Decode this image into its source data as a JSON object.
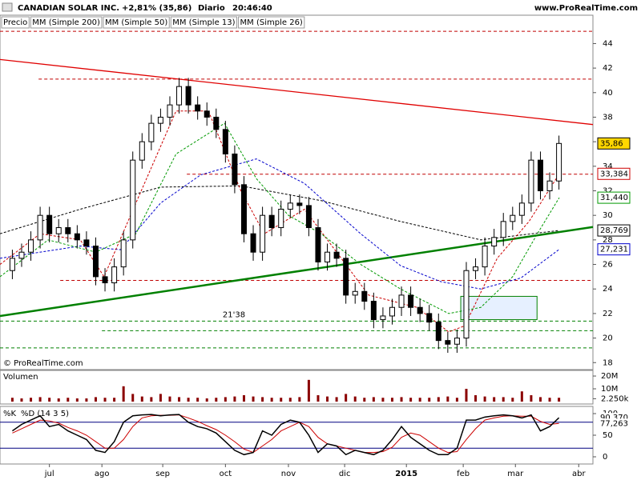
{
  "chart_data": {
    "type": "candlestick",
    "title": "CANADIAN SOLAR INC.",
    "change": "+2,81% (35,86)",
    "period": "Diario",
    "time": "20:46:40",
    "source": "www.ProRealTime.com",
    "watermark": "© ProRealTime.com",
    "price_label": "Precio",
    "x": [
      4,
      7,
      10,
      13,
      16,
      19,
      22,
      25,
      28,
      31,
      34,
      37,
      40,
      43,
      46,
      49,
      52,
      55,
      58,
      61,
      64,
      67,
      70,
      73,
      76,
      79,
      82,
      85,
      88,
      91,
      94,
      97,
      100,
      103,
      106,
      109,
      112,
      115,
      118,
      121,
      124,
      127,
      130,
      133,
      136,
      139,
      142,
      145,
      148,
      151,
      154,
      157,
      160,
      163,
      166,
      169,
      172,
      175,
      178,
      181
    ],
    "open": [
      25.5,
      26.5,
      27,
      28,
      30,
      28.5,
      29,
      28.5,
      28,
      27.5,
      25,
      24.5,
      25.8,
      28,
      34.5,
      36,
      37.5,
      38,
      39,
      40.5,
      39,
      38.5,
      38,
      37,
      35,
      32.5,
      28.5,
      27,
      30,
      29,
      30.5,
      31,
      30.8,
      29,
      26.2,
      27,
      26.5,
      23.5,
      23.8,
      23,
      21.5,
      21.8,
      22.5,
      23.5,
      22.5,
      22,
      21.3,
      19.8,
      19.5,
      20,
      25.5,
      25.8,
      27.5,
      28.2,
      29.5,
      30,
      31,
      34.5,
      32,
      32.8
    ],
    "high": [
      27.2,
      27.7,
      28.7,
      30.7,
      30.7,
      29.7,
      29.7,
      29.2,
      28.7,
      28.2,
      25.7,
      26.5,
      28.7,
      35.2,
      36.7,
      38.2,
      38.7,
      39.7,
      41.2,
      41.2,
      39.7,
      39.2,
      38.7,
      37.7,
      35.7,
      33.2,
      29.2,
      30.7,
      30.7,
      31.2,
      31.7,
      31.7,
      31.5,
      29.7,
      27.7,
      27.7,
      27.2,
      24.5,
      24.5,
      23.7,
      22.5,
      23.2,
      24.2,
      24.2,
      23.2,
      22.7,
      22,
      20.5,
      20.7,
      26.2,
      26.5,
      28.2,
      28.9,
      30.2,
      30.7,
      31.7,
      35.2,
      35.2,
      33.5,
      36.5
    ],
    "low": [
      24.8,
      25.8,
      26.3,
      27.3,
      27.8,
      27.8,
      27.8,
      27.3,
      26.8,
      24.3,
      23.8,
      23.8,
      25.1,
      27.3,
      33.8,
      35.3,
      36.8,
      37.3,
      38.3,
      38.3,
      37.8,
      37.3,
      36.3,
      34.3,
      31.8,
      27.8,
      26.3,
      26.3,
      28.3,
      28.3,
      29.8,
      30.1,
      28.3,
      25.5,
      25.5,
      25.8,
      22.8,
      22.8,
      22.3,
      20.8,
      20.8,
      21.1,
      21.8,
      21.8,
      21.3,
      20.6,
      19.1,
      18.8,
      18.8,
      19.3,
      24.8,
      25.1,
      26.8,
      27.5,
      28.8,
      29.3,
      30.3,
      31.3,
      31.3,
      32.1
    ],
    "close": [
      26.5,
      27,
      28,
      30,
      28.5,
      29,
      28.5,
      28,
      27.5,
      25,
      24.5,
      25.8,
      28,
      34.5,
      36,
      37.5,
      38,
      39,
      40.5,
      39,
      38.5,
      38,
      37,
      35,
      32.5,
      28.5,
      27,
      30,
      29,
      30.5,
      31,
      30.8,
      29,
      26.2,
      27,
      26.5,
      23.5,
      23.8,
      23,
      21.5,
      21.8,
      22.5,
      23.5,
      22.5,
      22,
      21.3,
      19.8,
      19.5,
      20,
      25.5,
      25.8,
      27.5,
      28.2,
      29.5,
      30,
      31,
      34.5,
      32,
      32.8,
      35.86
    ],
    "last": {
      "value": 35.86,
      "label": "35,86"
    },
    "xlim": [
      0,
      192
    ],
    "xticks": [
      {
        "value": 16,
        "label": "jul"
      },
      {
        "value": 33,
        "label": "ago"
      },
      {
        "value": 52.7,
        "label": "sep"
      },
      {
        "value": 73,
        "label": "oct"
      },
      {
        "value": 93.4,
        "label": "nov"
      },
      {
        "value": 111.6,
        "label": "dic"
      },
      {
        "value": 131.6,
        "label": "2015"
      },
      {
        "value": 150,
        "label": "feb"
      },
      {
        "value": 166.9,
        "label": "mar"
      },
      {
        "value": 187.4,
        "label": "abr"
      }
    ],
    "ylim": [
      17.43,
      46.31
    ],
    "yticks": [
      18,
      20,
      22,
      24,
      26,
      28,
      30,
      32,
      34,
      36,
      38,
      40,
      42,
      44
    ],
    "overlays": [
      {
        "name": "MM (Simple 200)",
        "color": "#000000",
        "x": [
          0,
          26,
          52,
          78,
          104,
          129.7,
          155.7,
          181.1
        ],
        "values": [
          28.5,
          30.5,
          32.3,
          32.4,
          31.2,
          29.5,
          28.0,
          28.769
        ],
        "last": {
          "value": 28.769,
          "label": "28,769"
        }
      },
      {
        "name": "MM (Simple 50)",
        "color": "#0000cc",
        "x": [
          0,
          26,
          39,
          52,
          65,
          83,
          98.6,
          116.8,
          129.7,
          142.7,
          155.7,
          168.7,
          181.1
        ],
        "values": [
          26.5,
          27.5,
          27.2,
          31,
          33.3,
          34.6,
          32.6,
          28.5,
          25.9,
          24.6,
          24,
          24.9,
          27.231
        ],
        "last": {
          "value": 27.231,
          "label": "27,231"
        }
      },
      {
        "name": "MM (Simple 13)",
        "color": "#cc0000",
        "x": [
          0,
          13,
          26,
          33.7,
          44,
          57,
          67.5,
          78,
          85.6,
          98.6,
          109,
          119.4,
          135,
          145.3,
          150.5,
          161,
          171.3,
          181.1
        ],
        "values": [
          26,
          28.5,
          28,
          25,
          31,
          38.5,
          38.5,
          32,
          28.5,
          30.5,
          27,
          23.5,
          22.5,
          20.5,
          21,
          26.5,
          29.5,
          33.384
        ],
        "last": {
          "value": 33.384,
          "label": "33,384"
        }
      },
      {
        "name": "MM (Simple 26)",
        "color": "#009900",
        "x": [
          0,
          15.6,
          31,
          44,
          57,
          72.7,
          83,
          93.4,
          104,
          116.8,
          129.7,
          145.3,
          155.7,
          166,
          174,
          181.1
        ],
        "values": [
          25,
          28,
          27,
          28.5,
          35,
          37.5,
          33,
          30,
          28.5,
          26,
          24,
          22,
          22.5,
          25,
          28.5,
          31.44
        ],
        "last": {
          "value": 31.44,
          "label": "31,440"
        }
      }
    ],
    "trendlines": [
      {
        "color": "#e00000",
        "x": [
          0,
          192
        ],
        "values": [
          42.7,
          37.4
        ]
      },
      {
        "color": "#008000",
        "x": [
          0,
          192
        ],
        "values": [
          21.8,
          29.05
        ]
      }
    ],
    "hlines": [
      {
        "value": 45.0,
        "x0": 0,
        "color": "#c00000"
      },
      {
        "value": 41.1,
        "x0": 12.5,
        "color": "#c00000"
      },
      {
        "value": 33.35,
        "x0": 60.5,
        "color": "#c00000"
      },
      {
        "value": 24.7,
        "x0": 19.5,
        "color": "#c00000"
      },
      {
        "value": 21.38,
        "x0": 0,
        "color": "#008000",
        "label": "21'38"
      },
      {
        "value": 20.6,
        "x0": 33,
        "color": "#008000"
      },
      {
        "value": 19.2,
        "x0": 0,
        "color": "#008000"
      }
    ],
    "box": {
      "x": [
        149.2,
        173.9
      ],
      "y": [
        21.5,
        23.4
      ]
    },
    "volume": {
      "label": "Volumen",
      "color": "#8b0000",
      "values": [
        3,
        2.5,
        3,
        3.5,
        3,
        2.5,
        3,
        2.5,
        2.5,
        3.5,
        3,
        3,
        12,
        6,
        4,
        3.5,
        6,
        4,
        3.5,
        3,
        3,
        2.5,
        3,
        3.5,
        4,
        5,
        4,
        3.5,
        3,
        3,
        3,
        3.5,
        17,
        5,
        4,
        3.5,
        6,
        4,
        3,
        3.5,
        3,
        3,
        3.5,
        3,
        3,
        3,
        3.5,
        4,
        3,
        10,
        5,
        4,
        3.5,
        3.5,
        3,
        8,
        5,
        3.5,
        3,
        3
      ],
      "ylim": [
        0,
        24.4
      ],
      "yticks": [
        {
          "value": 20,
          "label": "20M"
        },
        {
          "value": 10,
          "label": "10M"
        },
        {
          "value": 2.25,
          "label": "2.250k"
        }
      ]
    },
    "stochastic": {
      "k_name": "%K",
      "d_name": "%D (14 3 5)",
      "k_color": "#000000",
      "d_color": "#cc0000",
      "k": [
        60,
        75,
        85,
        95,
        70,
        75,
        60,
        50,
        40,
        15,
        10,
        35,
        80,
        95,
        97,
        98,
        95,
        97,
        98,
        80,
        70,
        65,
        55,
        35,
        15,
        5,
        10,
        60,
        50,
        75,
        85,
        80,
        50,
        10,
        30,
        25,
        5,
        15,
        10,
        5,
        15,
        40,
        70,
        45,
        30,
        15,
        5,
        5,
        20,
        85,
        85,
        92,
        95,
        97,
        95,
        90,
        97,
        60,
        70,
        90.37
      ],
      "d": [
        55,
        65,
        75,
        85,
        83,
        78,
        68,
        60,
        50,
        35,
        20,
        20,
        40,
        70,
        90,
        95,
        96,
        96,
        97,
        90,
        82,
        72,
        63,
        50,
        35,
        18,
        10,
        25,
        40,
        60,
        70,
        80,
        70,
        45,
        30,
        25,
        20,
        15,
        10,
        10,
        12,
        22,
        45,
        55,
        50,
        35,
        20,
        10,
        12,
        40,
        65,
        85,
        90,
        94,
        95,
        94,
        94,
        82,
        75,
        77.263
      ],
      "k_last": {
        "value": 90.37,
        "label": "90,370"
      },
      "d_last": {
        "value": 77.263,
        "label": "77,263"
      },
      "ylim": [
        -16.7,
        116.7
      ],
      "yticks": [
        0,
        50,
        100
      ],
      "levels": [
        20,
        80
      ]
    }
  }
}
